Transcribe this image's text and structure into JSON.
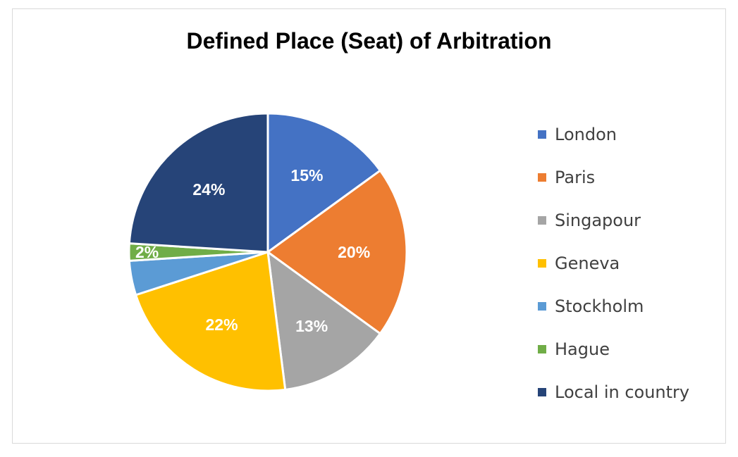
{
  "chart_data": {
    "type": "pie",
    "title": "Defined Place (Seat) of Arbitration",
    "legend_position": "right",
    "slices": [
      {
        "name": "London",
        "value": 15,
        "label": "15%",
        "color": "#4472C4"
      },
      {
        "name": "Paris",
        "value": 20,
        "label": "20%",
        "color": "#ED7D31"
      },
      {
        "name": "Singapour",
        "value": 13,
        "label": "13%",
        "color": "#A5A5A5"
      },
      {
        "name": "Geneva",
        "value": 22,
        "label": "22%",
        "color": "#FFC000"
      },
      {
        "name": "Stockholm",
        "value": 4,
        "label": "",
        "color": "#5B9BD5"
      },
      {
        "name": "Hague",
        "value": 2,
        "label": "2%",
        "color": "#70AD47"
      },
      {
        "name": "Local in country",
        "value": 24,
        "label": "24%",
        "color": "#264478"
      }
    ]
  }
}
